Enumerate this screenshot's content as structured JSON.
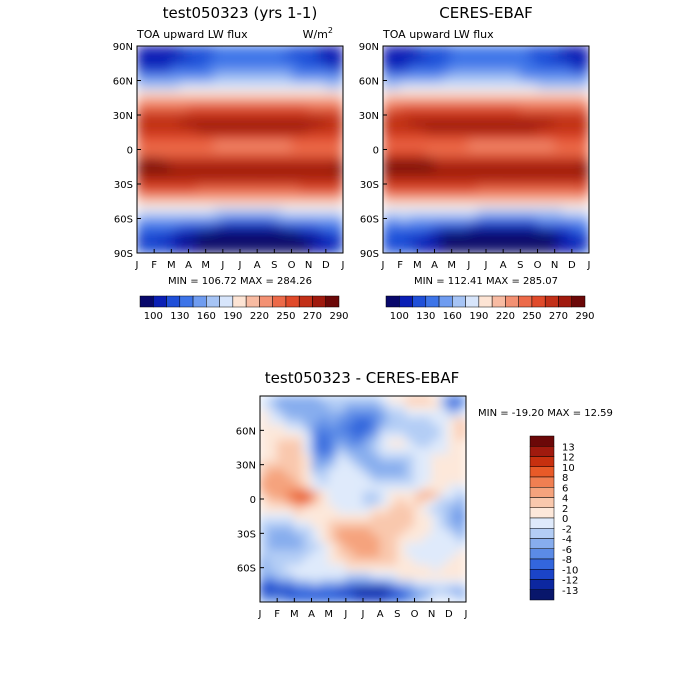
{
  "chart_data": [
    {
      "type": "heatmap",
      "title": "test050323 (yrs 1-1)",
      "left_label": "TOA upward LW flux",
      "units_base": "W/m",
      "units_exp": "2",
      "x_categories": [
        "J",
        "F",
        "M",
        "A",
        "M",
        "J",
        "J",
        "A",
        "S",
        "O",
        "N",
        "D",
        "J"
      ],
      "y_ticks": [
        "90N",
        "60N",
        "30N",
        "0",
        "30S",
        "60S",
        "90S"
      ],
      "y_range": [
        -90,
        90
      ],
      "stats": "MIN = 106.72 MAX = 284.26",
      "colorbar_labels": [
        "100",
        "130",
        "160",
        "190",
        "220",
        "250",
        "270",
        "290"
      ]
    },
    {
      "type": "heatmap",
      "title": "CERES-EBAF",
      "left_label": "TOA upward LW flux",
      "x_categories": [
        "J",
        "F",
        "M",
        "A",
        "M",
        "J",
        "J",
        "A",
        "S",
        "O",
        "N",
        "D",
        "J"
      ],
      "y_ticks": [
        "90N",
        "60N",
        "30N",
        "0",
        "30S",
        "60S",
        "90S"
      ],
      "y_range": [
        -90,
        90
      ],
      "stats": "MIN = 112.41 MAX = 285.07",
      "colorbar_labels": [
        "100",
        "130",
        "160",
        "190",
        "220",
        "250",
        "270",
        "290"
      ]
    },
    {
      "type": "heatmap",
      "title": "test050323 - CERES-EBAF",
      "x_categories": [
        "J",
        "F",
        "M",
        "A",
        "M",
        "J",
        "J",
        "A",
        "S",
        "O",
        "N",
        "D",
        "J"
      ],
      "y_ticks": [
        "60N",
        "30N",
        "0",
        "30S",
        "60S"
      ],
      "y_range": [
        -90,
        90
      ],
      "stats": "MIN = -19.20 MAX =  12.59",
      "colorbar_labels": [
        "13",
        "12",
        "10",
        "8",
        "6",
        "4",
        "2",
        "0",
        "-2",
        "-4",
        "-6",
        "-8",
        "-10",
        "-12",
        "-13"
      ]
    }
  ],
  "colors": {
    "flux_scale": [
      "#08086b",
      "#0a1fb5",
      "#1f4fd8",
      "#3d74e8",
      "#6f9cf0",
      "#a6c4f5",
      "#d7e5fb",
      "#fde4d4",
      "#f8bba2",
      "#f39173",
      "#ec6a49",
      "#e04a2a",
      "#c23018",
      "#a01a0e",
      "#6b0808"
    ],
    "diff_scale": [
      "#6b0808",
      "#a01a0e",
      "#c7300f",
      "#e85a28",
      "#f07f52",
      "#f5a37d",
      "#f9c8ad",
      "#fde8da",
      "#dfeafb",
      "#b3cdf5",
      "#87adee",
      "#5b8be6",
      "#3366dd",
      "#1b44c8",
      "#0c27a0",
      "#08166b"
    ]
  }
}
